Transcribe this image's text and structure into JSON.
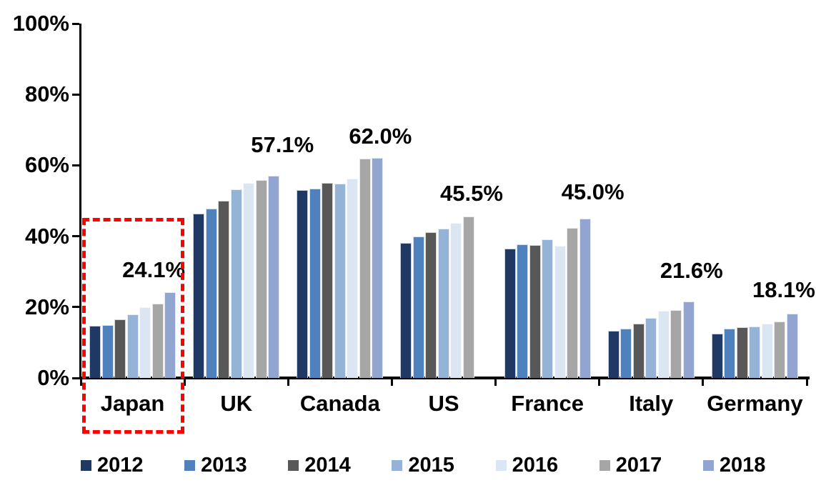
{
  "chart_data": {
    "type": "bar",
    "title": "",
    "xlabel": "",
    "ylabel": "",
    "ylim": [
      0,
      100
    ],
    "grid": false,
    "legend_position": "bottom",
    "y_tick_labels": [
      "0%",
      "20%",
      "40%",
      "60%",
      "80%",
      "100%"
    ],
    "categories": [
      "Japan",
      "UK",
      "Canada",
      "US",
      "France",
      "Italy",
      "Germany"
    ],
    "series": [
      {
        "name": "2012",
        "color": "#1F3864",
        "values": [
          14.7,
          46.4,
          53.0,
          38.2,
          36.5,
          13.3,
          12.5
        ]
      },
      {
        "name": "2013",
        "color": "#4F81BD",
        "values": [
          15.0,
          47.8,
          53.5,
          40.0,
          37.7,
          14.0,
          13.9
        ]
      },
      {
        "name": "2014",
        "color": "#585858",
        "values": [
          16.5,
          50.0,
          55.0,
          41.1,
          37.6,
          15.3,
          14.4
        ]
      },
      {
        "name": "2015",
        "color": "#95B3D7",
        "values": [
          18.0,
          53.2,
          54.8,
          42.2,
          39.2,
          16.9,
          14.6
        ]
      },
      {
        "name": "2016",
        "color": "#DCE6F2",
        "values": [
          19.9,
          55.0,
          56.3,
          43.7,
          37.4,
          19.0,
          15.3
        ]
      },
      {
        "name": "2017",
        "color": "#A6A6A6",
        "values": [
          21.0,
          55.9,
          61.8,
          45.5,
          42.3,
          19.2,
          16.0
        ]
      },
      {
        "name": "2018",
        "color": "#92A5D1",
        "values": [
          24.1,
          57.1,
          62.0,
          null,
          45.0,
          21.6,
          18.1
        ]
      }
    ],
    "data_labels": [
      {
        "category": "Japan",
        "text": "24.1%"
      },
      {
        "category": "UK",
        "text": "57.1%"
      },
      {
        "category": "Canada",
        "text": "62.0%"
      },
      {
        "category": "US",
        "text": "45.5%"
      },
      {
        "category": "France",
        "text": "45.0%"
      },
      {
        "category": "Italy",
        "text": "21.6%"
      },
      {
        "category": "Germany",
        "text": "18.1%"
      }
    ],
    "annotation": {
      "shape": "dashed-rectangle",
      "target_category": "Japan",
      "color": "#FF0000"
    }
  }
}
